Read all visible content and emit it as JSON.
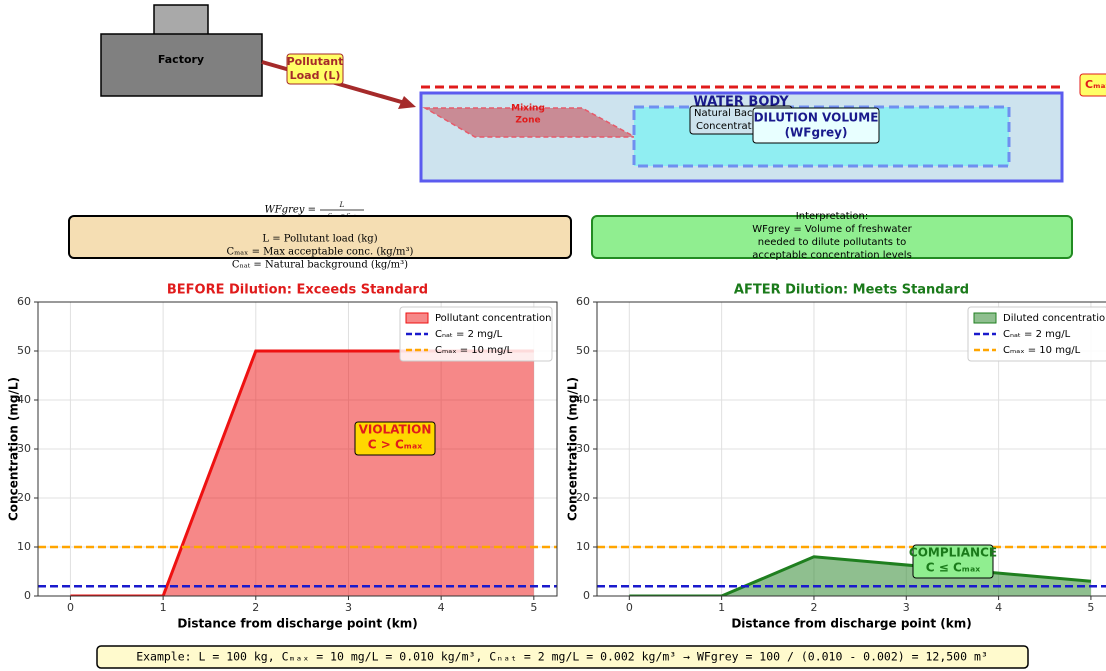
{
  "diagram": {
    "factory": "Factory",
    "pollutant_load": [
      "Pollutant",
      "Load (L)"
    ],
    "water_body": "WATER BODY",
    "mixing_zone": [
      "Mixing",
      "Zone"
    ],
    "natural_background": [
      "Natural Background",
      "Concentration"
    ],
    "dilution_volume": [
      "DILUTION VOLUME",
      "(WFgrey)"
    ],
    "cmax_label": "Cₘₐₓ",
    "formula": {
      "lhs": "WFgrey =",
      "numerator": "L",
      "denominator": "Cₘₐₓ − Cₙₐₜ"
    },
    "definitions": [
      "L = Pollutant load (kg)",
      "Cₘₐₓ = Max acceptable conc. (kg/m³)",
      "Cₙₐₜ = Natural background (kg/m³)"
    ],
    "interpretation": [
      "Interpretation:",
      "WFgrey = Volume of freshwater",
      "needed to dilute pollutants to",
      "acceptable concentration levels"
    ]
  },
  "chart_data": [
    {
      "type": "area",
      "title": "BEFORE Dilution: Exceeds Standard",
      "title_color": "#e01b1b",
      "x_label": "Distance from discharge point (km)",
      "y_label": "Concentration (mg/L)",
      "x": [
        0,
        1,
        2,
        5
      ],
      "xlim": [
        -0.35,
        5.25
      ],
      "xticks": [
        0,
        1,
        2,
        3,
        4,
        5
      ],
      "ylim": [
        0,
        60
      ],
      "yticks": [
        0,
        10,
        20,
        30,
        40,
        50,
        60
      ],
      "grid": true,
      "legend": "upper right",
      "series": [
        {
          "name": "Pollutant concentration",
          "color": "#ee1111",
          "values": [
            0,
            0,
            50,
            50
          ]
        }
      ],
      "hlines": [
        {
          "name": "Cₙₐₜ = 2 mg/L",
          "value": 2,
          "color": "#1a1acc"
        },
        {
          "name": "Cₘₐₓ = 10 mg/L",
          "value": 10,
          "color": "#ffa500"
        }
      ],
      "annotation": {
        "lines": [
          "VIOLATION",
          "C > Cₘₐₓ"
        ],
        "color": "#e01b1b",
        "background": "#ffd700"
      }
    },
    {
      "type": "area",
      "title": "AFTER Dilution: Meets Standard",
      "title_color": "#1a7a1a",
      "x_label": "Distance from discharge point (km)",
      "y_label": "Concentration (mg/L)",
      "x": [
        0,
        1,
        2,
        5
      ],
      "xlim": [
        -0.35,
        5.25
      ],
      "xticks": [
        0,
        1,
        2,
        3,
        4,
        5
      ],
      "ylim": [
        0,
        60
      ],
      "yticks": [
        0,
        10,
        20,
        30,
        40,
        50,
        60
      ],
      "grid": true,
      "legend": "upper right",
      "series": [
        {
          "name": "Diluted concentration",
          "color": "#1f7f1f",
          "values": [
            0,
            0,
            8,
            3
          ]
        }
      ],
      "hlines": [
        {
          "name": "Cₙₐₜ = 2 mg/L",
          "value": 2,
          "color": "#1a1acc"
        },
        {
          "name": "Cₘₐₓ = 10 mg/L",
          "value": 10,
          "color": "#ffa500"
        }
      ],
      "annotation": {
        "lines": [
          "COMPLIANCE",
          "C ≤ Cₘₐₓ"
        ],
        "color": "#1a7a1a",
        "background": "#90ee90"
      }
    }
  ],
  "footer": "Example: L = 100 kg, Cₘₐₓ = 10 mg/L = 0.010 kg/m³, Cₙₐₜ = 2 mg/L = 0.002 kg/m³ → WFgrey = 100 / (0.010 - 0.002) = 12,500 m³"
}
